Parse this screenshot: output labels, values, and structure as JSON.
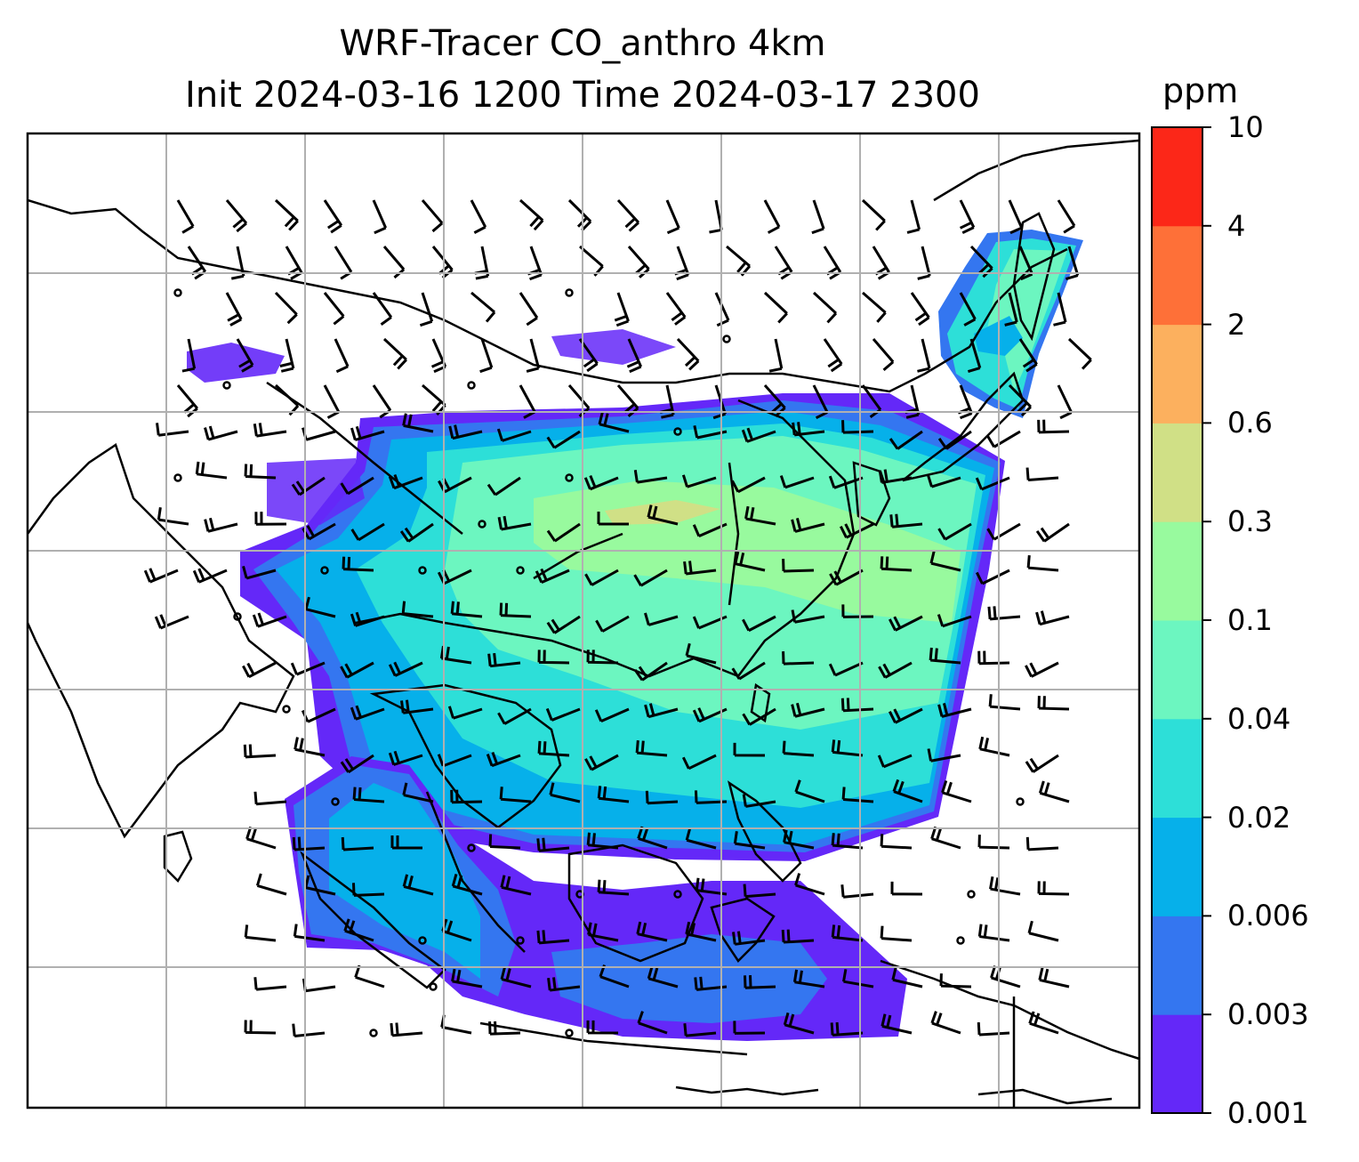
{
  "title": {
    "line1": "WRF-Tracer CO_anthro 4km",
    "line2": "Init 2024-03-16 1200 Time 2024-03-17 2300"
  },
  "colorbar": {
    "unit": "ppm",
    "levels": [
      "0.001",
      "0.003",
      "0.006",
      "0.02",
      "0.04",
      "0.1",
      "0.3",
      "0.6",
      "2",
      "4",
      "10"
    ],
    "colors": [
      "#6428f8",
      "#3476f0",
      "#06b0ea",
      "#2ddfd8",
      "#6cf6c0",
      "#98fa9e",
      "#d0e086",
      "#fcb05e",
      "#fe7038",
      "#fc2718"
    ]
  },
  "map": {
    "gridlines": true,
    "gridline_color": "#b0b0b0",
    "coastline_color": "#000000",
    "barb_color": "#000000"
  }
}
